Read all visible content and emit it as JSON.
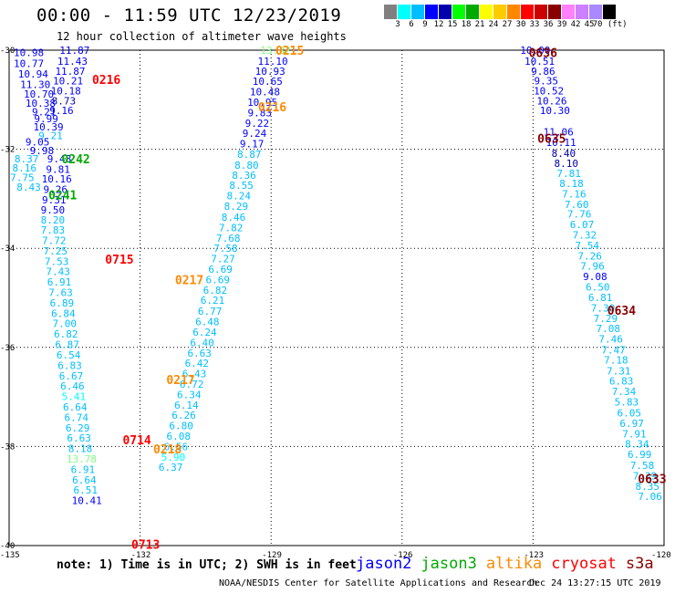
{
  "title": "00:00 - 11:59 UTC 12/23/2019",
  "subtitle": "12 hour collection of altimeter wave heights",
  "colorbar": {
    "colors": [
      "#808080",
      "#00ffff",
      "#00bfff",
      "#0000ff",
      "#0000aa",
      "#00ff00",
      "#00aa00",
      "#ffff00",
      "#ffcc00",
      "#ff8800",
      "#ff0000",
      "#cc0000",
      "#880000",
      "#ff80ff",
      "#cc80ff",
      "#aa88ff",
      "#000000"
    ],
    "labels": [
      "3",
      "6",
      "9",
      "12",
      "15",
      "18",
      "21",
      "24",
      "27",
      "30",
      "33",
      "36",
      "39",
      "42",
      "45",
      "70 (ft)"
    ]
  },
  "axes": {
    "lat_ticks": [
      "-30",
      "-32",
      "-34",
      "-36",
      "-38",
      "-40"
    ],
    "lon_ticks": [
      "-135",
      "-132",
      "-129",
      "-126",
      "-123",
      "-120"
    ],
    "lat_range": [
      -30,
      -40
    ],
    "lon_range": [
      -135,
      -120
    ]
  },
  "time_labels": [
    {
      "text": "0215",
      "lon": -128.9,
      "lat": -30.0,
      "color": "#ff8800"
    },
    {
      "text": "0216",
      "lon": -129.3,
      "lat": -31.14,
      "color": "#ff8800"
    },
    {
      "text": "0217",
      "lon": -131.2,
      "lat": -34.63,
      "color": "#ff8800"
    },
    {
      "text": "0217",
      "lon": -131.4,
      "lat": -36.65,
      "color": "#ff8800"
    },
    {
      "text": "0218",
      "lon": -131.7,
      "lat": -38.05,
      "color": "#ff8800"
    },
    {
      "text": "0216",
      "lon": -133.1,
      "lat": -30.59,
      "color": "#ff0000"
    },
    {
      "text": "0715",
      "lon": -132.8,
      "lat": -34.22,
      "color": "#ff0000"
    },
    {
      "text": "0714",
      "lon": -132.4,
      "lat": -37.86,
      "color": "#ff0000"
    },
    {
      "text": "0713",
      "lon": -132.2,
      "lat": -39.97,
      "color": "#ff0000"
    },
    {
      "text": "0242",
      "lon": -133.8,
      "lat": -32.19,
      "color": "#00aa00"
    },
    {
      "text": "0241",
      "lon": -134.1,
      "lat": -32.92,
      "color": "#00aa00"
    },
    {
      "text": "0636",
      "lon": -123.1,
      "lat": -30.05,
      "color": "#880000"
    },
    {
      "text": "0635",
      "lon": -122.9,
      "lat": -31.78,
      "color": "#880000"
    },
    {
      "text": "0634",
      "lon": -121.3,
      "lat": -35.25,
      "color": "#880000"
    },
    {
      "text": "0633",
      "lon": -120.6,
      "lat": -38.65,
      "color": "#880000"
    }
  ],
  "tracks": [
    {
      "name": "cyan-right",
      "color": "#00bfff",
      "points": [
        [
          "10.00",
          -122.95,
          -30.0,
          "#0000ff"
        ],
        [
          "10.51",
          -122.85,
          -30.22,
          "#0000ff"
        ],
        [
          "9.86",
          -122.77,
          -30.42,
          "#0000ff"
        ],
        [
          "9.35",
          -122.7,
          -30.62,
          "#0000ff"
        ],
        [
          "10.52",
          -122.64,
          -30.82,
          "#0000ff"
        ],
        [
          "10.26",
          -122.57,
          -31.02,
          "#0000ff"
        ],
        [
          "10.30",
          -122.5,
          -31.22,
          "#0000ff"
        ],
        [
          "11.06",
          -122.42,
          -31.65,
          "#0000ff"
        ],
        [
          "10.11",
          -122.36,
          -31.86,
          "#0000ff"
        ],
        [
          "8.40",
          -122.3,
          -32.08,
          "#0000aa"
        ],
        [
          "8.10",
          -122.24,
          -32.28,
          "#0000aa"
        ],
        [
          "7.81",
          -122.18,
          -32.49,
          "#00bfff"
        ],
        [
          "8.18",
          -122.12,
          -32.69,
          "#00bfff"
        ],
        [
          "7.16",
          -122.06,
          -32.9,
          "#00bfff"
        ],
        [
          "7.60",
          -122.0,
          -33.11,
          "#00bfff"
        ],
        [
          "7.76",
          -121.94,
          -33.31,
          "#00bfff"
        ],
        [
          "6.07",
          -121.88,
          -33.52,
          "#00bfff"
        ],
        [
          "7.32",
          -121.82,
          -33.73,
          "#00bfff"
        ],
        [
          "7.54",
          -121.76,
          -33.94,
          "#00bfff"
        ],
        [
          "7.26",
          -121.7,
          -34.15,
          "#00bfff"
        ],
        [
          "7.96",
          -121.64,
          -34.36,
          "#00bfff"
        ],
        [
          "9.08",
          -121.58,
          -34.57,
          "#0000ff"
        ],
        [
          "6.50",
          -121.52,
          -34.78,
          "#00bfff"
        ],
        [
          "6.81",
          -121.46,
          -34.99,
          "#00bfff"
        ],
        [
          "7.30",
          -121.4,
          -35.2,
          "#00bfff"
        ],
        [
          "7.29",
          -121.34,
          -35.41,
          "#00bfff"
        ],
        [
          "7.08",
          -121.28,
          -35.62,
          "#00bfff"
        ],
        [
          "7.46",
          -121.22,
          -35.83,
          "#00bfff"
        ],
        [
          "7.47",
          -121.16,
          -36.05,
          "#00bfff"
        ],
        [
          "7.18",
          -121.1,
          -36.25,
          "#00bfff"
        ],
        [
          "7.31",
          -121.04,
          -36.47,
          "#00bfff"
        ],
        [
          "6.83",
          -120.98,
          -36.68,
          "#00bfff"
        ],
        [
          "7.34",
          -120.92,
          -36.89,
          "#00bfff"
        ],
        [
          "5.83",
          -120.86,
          -37.1,
          "#00bfff"
        ],
        [
          "6.05",
          -120.8,
          -37.32,
          "#00bfff"
        ],
        [
          "6.97",
          -120.74,
          -37.53,
          "#00bfff"
        ],
        [
          "7.91",
          -120.68,
          -37.74,
          "#00bfff"
        ],
        [
          "8.34",
          -120.62,
          -37.95,
          "#00bfff"
        ],
        [
          "6.99",
          -120.56,
          -38.16,
          "#00bfff"
        ],
        [
          "7.58",
          -120.5,
          -38.38,
          "#00bfff"
        ],
        [
          "7.39",
          -120.44,
          -38.59,
          "#00bfff"
        ],
        [
          "8.35",
          -120.38,
          -38.8,
          "#00bfff"
        ],
        [
          "7.06",
          -120.32,
          -39.01,
          "#00bfff"
        ]
      ]
    },
    {
      "name": "orange-track",
      "color": "#00bfff",
      "points": [
        [
          "13.32",
          -128.9,
          -30.0,
          "#80ff80"
        ],
        [
          "11.10",
          -128.96,
          -30.22,
          "#0000ff"
        ],
        [
          "10.93",
          -129.02,
          -30.42,
          "#0000ff"
        ],
        [
          "10.65",
          -129.08,
          -30.63,
          "#0000ff"
        ],
        [
          "10.48",
          -129.14,
          -30.84,
          "#0000ff"
        ],
        [
          "10.95",
          -129.2,
          -31.05,
          "#0000ff"
        ],
        [
          "9.83",
          -129.26,
          -31.26,
          "#0000ff"
        ],
        [
          "9.22",
          -129.32,
          -31.47,
          "#0000ff"
        ],
        [
          "9.24",
          -129.38,
          -31.68,
          "#0000ff"
        ],
        [
          "9.17",
          -129.44,
          -31.89,
          "#0000ff"
        ],
        [
          "8.87",
          -129.5,
          -32.1,
          "#00bfff"
        ],
        [
          "8.80",
          -129.56,
          -32.32,
          "#00bfff"
        ],
        [
          "8.36",
          -129.62,
          -32.52,
          "#00bfff"
        ],
        [
          "8.55",
          -129.68,
          -32.73,
          "#00bfff"
        ],
        [
          "8.24",
          -129.74,
          -32.94,
          "#00bfff"
        ],
        [
          "8.29",
          -129.8,
          -33.15,
          "#00bfff"
        ],
        [
          "8.46",
          -129.86,
          -33.37,
          "#00bfff"
        ],
        [
          "7.82",
          -129.92,
          -33.58,
          "#00bfff"
        ],
        [
          "7.68",
          -129.98,
          -33.79,
          "#00bfff"
        ],
        [
          "7.58",
          -130.04,
          -34.0,
          "#00bfff"
        ],
        [
          "7.27",
          -130.1,
          -34.21,
          "#00bfff"
        ],
        [
          "6.69",
          -130.16,
          -34.42,
          "#00bfff"
        ],
        [
          "6.69",
          -130.22,
          -34.63,
          "#00bfff"
        ],
        [
          "6.82",
          -130.28,
          -34.84,
          "#00bfff"
        ],
        [
          "6.21",
          -130.34,
          -35.05,
          "#00bfff"
        ],
        [
          "6.77",
          -130.4,
          -35.27,
          "#00bfff"
        ],
        [
          "6.48",
          -130.46,
          -35.48,
          "#00bfff"
        ],
        [
          "6.24",
          -130.52,
          -35.69,
          "#00bfff"
        ],
        [
          "6.40",
          -130.58,
          -35.9,
          "#00bfff"
        ],
        [
          "6.63",
          -130.64,
          -36.11,
          "#00bfff"
        ],
        [
          "6.42",
          -130.7,
          -36.32,
          "#00bfff"
        ],
        [
          "6.43",
          -130.76,
          -36.53,
          "#00bfff"
        ],
        [
          "6.72",
          -130.82,
          -36.74,
          "#00bfff"
        ],
        [
          "6.34",
          -130.88,
          -36.95,
          "#00bfff"
        ],
        [
          "6.14",
          -130.94,
          -37.16,
          "#00bfff"
        ],
        [
          "6.26",
          -131.0,
          -37.37,
          "#00bfff"
        ],
        [
          "6.80",
          -131.06,
          -37.58,
          "#00bfff"
        ],
        [
          "6.08",
          -131.12,
          -37.79,
          "#00bfff"
        ],
        [
          "6.56",
          -131.18,
          -38.0,
          "#00bfff"
        ],
        [
          "5.90",
          -131.24,
          -38.21,
          "#00ffff"
        ],
        [
          "6.37",
          -131.3,
          -38.42,
          "#00bfff"
        ]
      ]
    },
    {
      "name": "red-track",
      "color": "#00bfff",
      "points": [
        [
          "11.87",
          -133.5,
          -30.0,
          "#0000ff"
        ],
        [
          "11.43",
          -133.55,
          -30.22,
          "#0000ff"
        ],
        [
          "11.87",
          -133.6,
          -30.42,
          "#0000ff"
        ],
        [
          "10.21",
          -133.65,
          -30.62,
          "#0000ff"
        ],
        [
          "10.18",
          -133.7,
          -30.82,
          "#0000ff"
        ],
        [
          "8.73",
          -133.75,
          -31.02,
          "#0000aa"
        ],
        [
          "9.16",
          -133.8,
          -31.22,
          "#0000ff"
        ],
        [
          "9.48",
          -133.85,
          -32.19,
          "#0000ff"
        ],
        [
          "9.81",
          -133.88,
          -32.4,
          "#0000ff"
        ],
        [
          "10.16",
          -133.91,
          -32.6,
          "#0000ff"
        ],
        [
          "9.26",
          -133.94,
          -32.81,
          "#0000ff"
        ],
        [
          "9.31",
          -133.97,
          -33.02,
          "#0000ff"
        ],
        [
          "9.50",
          -134.0,
          -33.22,
          "#0000ff"
        ],
        [
          "8.20",
          -134.0,
          -33.43,
          "#00bfff"
        ],
        [
          "7.83",
          -134.0,
          -33.63,
          "#00bfff"
        ],
        [
          "7.72",
          -133.97,
          -33.84,
          "#00bfff"
        ],
        [
          "7.25",
          -133.94,
          -34.05,
          "#00bfff"
        ],
        [
          "7.53",
          -133.91,
          -34.26,
          "#00bfff"
        ],
        [
          "7.43",
          -133.88,
          -34.47,
          "#00bfff"
        ],
        [
          "6.91",
          -133.85,
          -34.68,
          "#00bfff"
        ],
        [
          "7.63",
          -133.82,
          -34.89,
          "#00bfff"
        ],
        [
          "6.89",
          -133.79,
          -35.1,
          "#00bfff"
        ],
        [
          "6.84",
          -133.76,
          -35.31,
          "#00bfff"
        ],
        [
          "7.00",
          -133.73,
          -35.52,
          "#00bfff"
        ],
        [
          "6.82",
          -133.7,
          -35.73,
          "#00bfff"
        ],
        [
          "6.87",
          -133.67,
          -35.94,
          "#00bfff"
        ],
        [
          "6.54",
          -133.64,
          -36.15,
          "#00bfff"
        ],
        [
          "6.83",
          -133.61,
          -36.36,
          "#00bfff"
        ],
        [
          "6.67",
          -133.58,
          -36.57,
          "#00bfff"
        ],
        [
          "6.46",
          -133.55,
          -36.78,
          "#00bfff"
        ],
        [
          "5.41",
          -133.52,
          -36.99,
          "#00ffff"
        ],
        [
          "6.64",
          -133.49,
          -37.2,
          "#00bfff"
        ],
        [
          "6.74",
          -133.46,
          -37.41,
          "#00bfff"
        ],
        [
          "6.29",
          -133.43,
          -37.62,
          "#00bfff"
        ],
        [
          "6.63",
          -133.4,
          -37.83,
          "#00bfff"
        ],
        [
          "8.18",
          -133.37,
          -38.04,
          "#00bfff"
        ],
        [
          "13.78",
          -133.34,
          -38.25,
          "#80ff80"
        ],
        [
          "6.91",
          -133.31,
          -38.46,
          "#00bfff"
        ],
        [
          "6.64",
          -133.28,
          -38.67,
          "#00bfff"
        ],
        [
          "6.51",
          -133.25,
          -38.88,
          "#00bfff"
        ],
        [
          "10.41",
          -133.22,
          -39.09,
          "#0000ff"
        ]
      ]
    },
    {
      "name": "green-track",
      "color": "#0000ff",
      "points": [
        [
          "10.98",
          -134.55,
          -30.05,
          "#0000ff"
        ],
        [
          "10.77",
          -134.55,
          -30.27,
          "#0000ff"
        ],
        [
          "10.94",
          -134.45,
          -30.48,
          "#0000ff"
        ],
        [
          "11.30",
          -134.4,
          -30.69,
          "#0000ff"
        ],
        [
          "10.70",
          -134.32,
          -30.88,
          "#0000ff"
        ],
        [
          "10.38",
          -134.28,
          -31.07,
          "#0000ff"
        ],
        [
          "9.21",
          -134.2,
          -31.24,
          "#0000ff"
        ],
        [
          "9.99",
          -134.15,
          -31.38,
          "#0000ff"
        ],
        [
          "10.39",
          -134.1,
          -31.55,
          "#0000ff"
        ],
        [
          "9.21",
          -134.05,
          -31.72,
          "#00bfff"
        ],
        [
          "9.05",
          -134.35,
          -31.85,
          "#0000ff"
        ],
        [
          "9.98",
          -134.25,
          -32.03,
          "#0000ff"
        ],
        [
          "8.37",
          -134.6,
          -32.19,
          "#00bfff"
        ],
        [
          "8.16",
          -134.65,
          -32.38,
          "#00bfff"
        ],
        [
          "7.75",
          -134.7,
          -32.57,
          "#00bfff"
        ],
        [
          "8.43",
          -134.55,
          -32.76,
          "#00bfff"
        ]
      ]
    }
  ],
  "note": "note:  1) Time is in UTC; 2) SWH is in feet",
  "legend": [
    {
      "label": "jason2",
      "color": "#0000ff"
    },
    {
      "label": "jason3",
      "color": "#00aa00"
    },
    {
      "label": "altika",
      "color": "#ff8800"
    },
    {
      "label": "cryosat",
      "color": "#ff0000"
    },
    {
      "label": "s3a",
      "color": "#880000"
    }
  ],
  "footer_left": "NOAA/NESDIS Center for Satellite Applications and Research",
  "footer_right": "Dec 24 13:27:15 UTC 2019"
}
